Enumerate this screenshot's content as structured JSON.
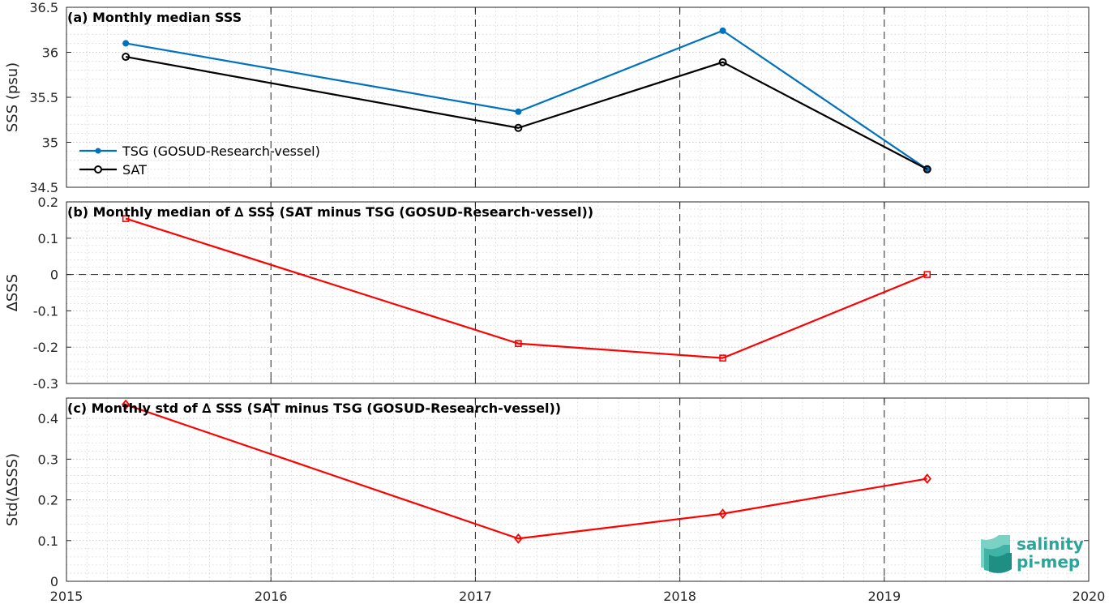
{
  "x_axis": {
    "ticks": [
      "2015",
      "2016",
      "2017",
      "2018",
      "2019",
      "2020"
    ],
    "range": [
      2015,
      2020
    ]
  },
  "logo": {
    "line1": "salinity",
    "line2": "pi-mep",
    "color": "#2aa59a"
  },
  "chart_data": [
    {
      "type": "line",
      "title": "(a) Monthly median SSS",
      "ylabel": "SSS (psu)",
      "ylim": [
        34.5,
        36.5
      ],
      "yticks": [
        "34.5",
        "35",
        "35.5",
        "36",
        "36.5"
      ],
      "ytick_values": [
        34.5,
        35,
        35.5,
        36,
        36.5
      ],
      "grid": true,
      "legend_position": "bottom-left",
      "series": [
        {
          "name": "TSG (GOSUD-Research-vessel)",
          "color": "#0072bd",
          "marker": "dot",
          "x": [
            "2015-04",
            "2017-03",
            "2018-03",
            "2019-03"
          ],
          "x_decimal": [
            2015.29,
            2017.21,
            2018.21,
            2019.21
          ],
          "values": [
            36.1,
            35.34,
            36.24,
            34.7
          ]
        },
        {
          "name": "SAT",
          "color": "#000000",
          "marker": "circle",
          "x": [
            "2015-04",
            "2017-03",
            "2018-03",
            "2019-03"
          ],
          "x_decimal": [
            2015.29,
            2017.21,
            2018.21,
            2019.21
          ],
          "values": [
            35.95,
            35.16,
            35.89,
            34.7
          ]
        }
      ]
    },
    {
      "type": "line",
      "title": "(b) Monthly median of ∆ SSS (SAT minus TSG (GOSUD-Research-vessel))",
      "ylabel": "∆SSS",
      "ylim": [
        -0.3,
        0.2
      ],
      "yticks": [
        "-0.3",
        "-0.2",
        "-0.1",
        "0",
        "0.1",
        "0.2"
      ],
      "ytick_values": [
        -0.3,
        -0.2,
        -0.1,
        0,
        0.1,
        0.2
      ],
      "grid": true,
      "zero_line": true,
      "series": [
        {
          "color": "#ff0000",
          "marker": "square",
          "x": [
            "2015-04",
            "2017-03",
            "2018-03",
            "2019-03"
          ],
          "x_decimal": [
            2015.29,
            2017.21,
            2018.21,
            2019.21
          ],
          "values": [
            0.154,
            -0.19,
            -0.23,
            0.0
          ]
        }
      ]
    },
    {
      "type": "line",
      "title": "(c) Monthly std of ∆ SSS (SAT minus TSG (GOSUD-Research-vessel))",
      "ylabel": "Std(∆SSS)",
      "ylim": [
        0,
        0.45
      ],
      "yticks": [
        "0",
        "0.1",
        "0.2",
        "0.3",
        "0.4"
      ],
      "ytick_values": [
        0,
        0.1,
        0.2,
        0.3,
        0.4
      ],
      "grid": true,
      "series": [
        {
          "color": "#ff0000",
          "marker": "diamond",
          "x": [
            "2015-04",
            "2017-03",
            "2018-03",
            "2019-03"
          ],
          "x_decimal": [
            2015.29,
            2017.21,
            2018.21,
            2019.21
          ],
          "values": [
            0.434,
            0.105,
            0.166,
            0.252
          ]
        }
      ]
    }
  ]
}
